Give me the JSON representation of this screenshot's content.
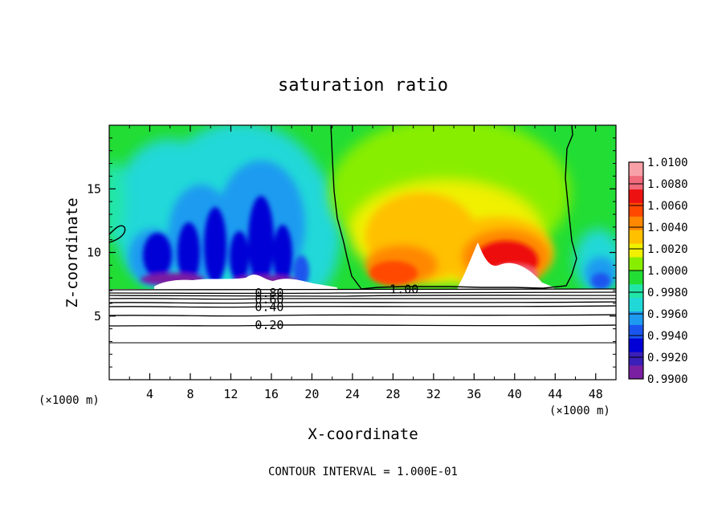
{
  "chart_data": {
    "type": "heatmap",
    "title": "saturation ratio",
    "xlabel": "X-coordinate",
    "ylabel": "Z-coordinate",
    "x_unit_left": "(×1000 m)",
    "x_unit_right": "(×1000 m)",
    "footer": "CONTOUR INTERVAL = 1.000E-01",
    "xlim": [
      0,
      50
    ],
    "ylim": [
      0,
      20
    ],
    "x_ticks": [
      4,
      8,
      12,
      16,
      20,
      24,
      28,
      32,
      36,
      40,
      44,
      48
    ],
    "x_tick_labels": [
      "4",
      "8",
      "12",
      "16",
      "20",
      "24",
      "28",
      "32",
      "36",
      "40",
      "44",
      "48"
    ],
    "y_ticks": [
      5,
      10,
      15
    ],
    "y_tick_labels": [
      "5",
      "10",
      "15"
    ],
    "colorbar": {
      "min": 0.99,
      "max": 1.01,
      "labels": [
        "1.0100",
        "1.0080",
        "1.0060",
        "1.0040",
        "1.0020",
        "1.0000",
        "0.9980",
        "0.9960",
        "0.9940",
        "0.9920",
        "0.9900"
      ],
      "colors": [
        "#7a1fa2",
        "#3a1fb8",
        "#0000d6",
        "#1a55ee",
        "#1e9bf0",
        "#20d8d8",
        "#22e6a8",
        "#22dd33",
        "#88ee00",
        "#f0f000",
        "#ffc000",
        "#ff8800",
        "#ff4800",
        "#ee1111",
        "#f06a7a",
        "#f8a0a8"
      ]
    },
    "contour_labels": [
      {
        "text": "0.80",
        "x": 15.8,
        "z": 6.8
      },
      {
        "text": "0.60",
        "x": 15.8,
        "z": 6.3
      },
      {
        "text": "0.40",
        "x": 15.8,
        "z": 5.7
      },
      {
        "text": "0.20",
        "x": 15.8,
        "z": 4.3
      },
      {
        "text": "1.00",
        "x": 29.1,
        "z": 7.1
      }
    ]
  }
}
